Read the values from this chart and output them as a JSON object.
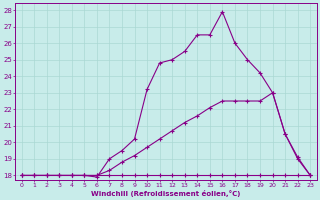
{
  "xlabel": "Windchill (Refroidissement éolien,°C)",
  "bg_color": "#c8ecea",
  "line_color": "#880088",
  "grid_color": "#aad8d4",
  "xlim": [
    -0.5,
    23.5
  ],
  "ylim": [
    17.7,
    28.4
  ],
  "xticks": [
    0,
    1,
    2,
    3,
    4,
    5,
    6,
    7,
    8,
    9,
    10,
    11,
    12,
    13,
    14,
    15,
    16,
    17,
    18,
    19,
    20,
    21,
    22,
    23
  ],
  "yticks": [
    18,
    19,
    20,
    21,
    22,
    23,
    24,
    25,
    26,
    27,
    28
  ],
  "line1_x": [
    0,
    1,
    2,
    3,
    4,
    5,
    6,
    7,
    8,
    9,
    10,
    11,
    12,
    13,
    14,
    15,
    16,
    17,
    18,
    19,
    20,
    21,
    22,
    23
  ],
  "line1_y": [
    18,
    18,
    18,
    18,
    18,
    18,
    18,
    18,
    18,
    18,
    18,
    18,
    18,
    18,
    18,
    18,
    18,
    18,
    18,
    18,
    18,
    18,
    18,
    18
  ],
  "line2_x": [
    0,
    1,
    2,
    3,
    4,
    5,
    6,
    7,
    8,
    9,
    10,
    11,
    12,
    13,
    14,
    15,
    16,
    17,
    18,
    19,
    20,
    21,
    22,
    23
  ],
  "line2_y": [
    18,
    18,
    18,
    18,
    18,
    18,
    18,
    18.3,
    18.8,
    19.2,
    19.7,
    20.2,
    20.7,
    21.2,
    21.6,
    22.1,
    22.5,
    22.5,
    22.5,
    22.5,
    23,
    20.5,
    19.0,
    18
  ],
  "line3_x": [
    0,
    1,
    2,
    3,
    4,
    5,
    6,
    7,
    8,
    9,
    10,
    11,
    12,
    13,
    14,
    15,
    16,
    17,
    18,
    19,
    20,
    21,
    22,
    23
  ],
  "line3_y": [
    18,
    18,
    18,
    18,
    18,
    18,
    17.9,
    19.0,
    19.5,
    20.2,
    23.2,
    24.8,
    25.0,
    25.5,
    26.5,
    26.5,
    27.9,
    26.0,
    25.0,
    24.2,
    23.0,
    20.5,
    19.1,
    18
  ]
}
